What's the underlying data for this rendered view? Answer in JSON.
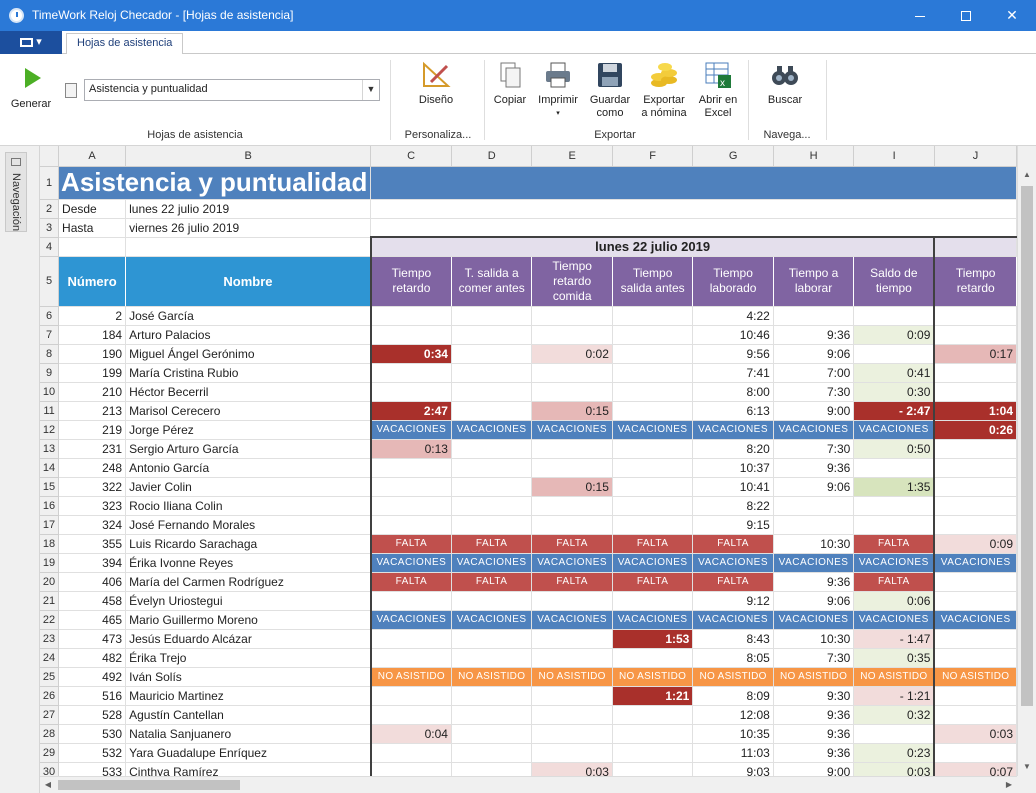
{
  "window": {
    "title": "TimeWork Reloj Checador - [Hojas de asistencia]"
  },
  "tabs": {
    "active": "Hojas de asistencia"
  },
  "ribbon": {
    "generar": "Generar",
    "selector_value": "Asistencia y puntualidad",
    "group_hojas": "Hojas de asistencia",
    "diseno": "Diseño",
    "group_personaliza": "Personaliza...",
    "copiar": "Copiar",
    "imprimir": "Imprimir",
    "guardar_l1": "Guardar",
    "guardar_l2": "como",
    "exportar_l1": "Exportar",
    "exportar_l2": "a nómina",
    "abrir_l1": "Abrir en",
    "abrir_l2": "Excel",
    "group_exportar": "Exportar",
    "buscar": "Buscar",
    "group_navega": "Navega..."
  },
  "nav": {
    "label": "Navegación"
  },
  "columns": [
    "A",
    "B",
    "C",
    "D",
    "E",
    "F",
    "G",
    "H",
    "I",
    "J"
  ],
  "sheet": {
    "title": "Asistencia y puntualidad",
    "desde_label": "Desde",
    "desde_value": "lunes 22 julio 2019",
    "hasta_label": "Hasta",
    "hasta_value": "viernes 26 julio 2019",
    "day_header": "lunes 22 julio 2019",
    "head_numero": "Número",
    "head_nombre": "Nombre",
    "head_c": "Tiempo retardo",
    "head_d": "T. salida a comer antes",
    "head_e": "Tiempo retardo comida",
    "head_f": "Tiempo salida antes",
    "head_g": "Tiempo laborado",
    "head_h": "Tiempo a laborar",
    "head_i": "Saldo de tiempo",
    "head_j": "Tiempo retardo"
  },
  "rows": [
    {
      "r": "6",
      "num": "2",
      "name": "José García",
      "c": "",
      "d": "",
      "e": "",
      "f": "",
      "g": "4:22",
      "h": "",
      "i": "",
      "j": ""
    },
    {
      "r": "7",
      "num": "184",
      "name": "Arturo Palacios",
      "c": "",
      "d": "",
      "e": "",
      "f": "",
      "g": "10:46",
      "h": "9:36",
      "i": "0:09",
      "j": ""
    },
    {
      "r": "8",
      "num": "190",
      "name": "Miguel Ángel Gerónimo",
      "c": "0:34",
      "d": "",
      "e": "0:02",
      "f": "",
      "g": "9:56",
      "h": "9:06",
      "i": "",
      "j": "0:17"
    },
    {
      "r": "9",
      "num": "199",
      "name": "María Cristina Rubio",
      "c": "",
      "d": "",
      "e": "",
      "f": "",
      "g": "7:41",
      "h": "7:00",
      "i": "0:41",
      "j": ""
    },
    {
      "r": "10",
      "num": "210",
      "name": "Héctor Becerril",
      "c": "",
      "d": "",
      "e": "",
      "f": "",
      "g": "8:00",
      "h": "7:30",
      "i": "0:30",
      "j": ""
    },
    {
      "r": "11",
      "num": "213",
      "name": "Marisol Cerecero",
      "c": "2:47",
      "d": "",
      "e": "0:15",
      "f": "",
      "g": "6:13",
      "h": "9:00",
      "i": "- 2:47",
      "j": "1:04"
    },
    {
      "r": "12",
      "num": "219",
      "name": "Jorge Pérez",
      "c": "VACACIONES",
      "d": "VACACIONES",
      "e": "VACACIONES",
      "f": "VACACIONES",
      "g": "VACACIONES",
      "h": "VACACIONES",
      "i": "VACACIONES",
      "j": "0:26"
    },
    {
      "r": "13",
      "num": "231",
      "name": "Sergio Arturo García",
      "c": "0:13",
      "d": "",
      "e": "",
      "f": "",
      "g": "8:20",
      "h": "7:30",
      "i": "0:50",
      "j": ""
    },
    {
      "r": "14",
      "num": "248",
      "name": "Antonio García",
      "c": "",
      "d": "",
      "e": "",
      "f": "",
      "g": "10:37",
      "h": "9:36",
      "i": "",
      "j": ""
    },
    {
      "r": "15",
      "num": "322",
      "name": "Javier Colin",
      "c": "",
      "d": "",
      "e": "0:15",
      "f": "",
      "g": "10:41",
      "h": "9:06",
      "i": "1:35",
      "j": ""
    },
    {
      "r": "16",
      "num": "323",
      "name": "Rocio Iliana Colin",
      "c": "",
      "d": "",
      "e": "",
      "f": "",
      "g": "8:22",
      "h": "",
      "i": "",
      "j": ""
    },
    {
      "r": "17",
      "num": "324",
      "name": "José Fernando Morales",
      "c": "",
      "d": "",
      "e": "",
      "f": "",
      "g": "9:15",
      "h": "",
      "i": "",
      "j": ""
    },
    {
      "r": "18",
      "num": "355",
      "name": "Luis Ricardo Sarachaga",
      "c": "FALTA",
      "d": "FALTA",
      "e": "FALTA",
      "f": "FALTA",
      "g": "FALTA",
      "h": "10:30",
      "i": "FALTA",
      "j": "0:09"
    },
    {
      "r": "19",
      "num": "394",
      "name": "Érika Ivonne Reyes",
      "c": "VACACIONES",
      "d": "VACACIONES",
      "e": "VACACIONES",
      "f": "VACACIONES",
      "g": "VACACIONES",
      "h": "VACACIONES",
      "i": "VACACIONES",
      "j": "VACACIONES"
    },
    {
      "r": "20",
      "num": "406",
      "name": "María del Carmen Rodríguez",
      "c": "FALTA",
      "d": "FALTA",
      "e": "FALTA",
      "f": "FALTA",
      "g": "FALTA",
      "h": "9:36",
      "i": "FALTA",
      "j": ""
    },
    {
      "r": "21",
      "num": "458",
      "name": "Évelyn Uriostegui",
      "c": "",
      "d": "",
      "e": "",
      "f": "",
      "g": "9:12",
      "h": "9:06",
      "i": "0:06",
      "j": ""
    },
    {
      "r": "22",
      "num": "465",
      "name": "Mario Guillermo Moreno",
      "c": "VACACIONES",
      "d": "VACACIONES",
      "e": "VACACIONES",
      "f": "VACACIONES",
      "g": "VACACIONES",
      "h": "VACACIONES",
      "i": "VACACIONES",
      "j": "VACACIONES"
    },
    {
      "r": "23",
      "num": "473",
      "name": "Jesús Eduardo Alcázar",
      "c": "",
      "d": "",
      "e": "",
      "f": "1:53",
      "g": "8:43",
      "h": "10:30",
      "i": "- 1:47",
      "j": ""
    },
    {
      "r": "24",
      "num": "482",
      "name": "Érika Trejo",
      "c": "",
      "d": "",
      "e": "",
      "f": "",
      "g": "8:05",
      "h": "7:30",
      "i": "0:35",
      "j": ""
    },
    {
      "r": "25",
      "num": "492",
      "name": "Iván Solís",
      "c": "NO ASISTIDO",
      "d": "NO ASISTIDO",
      "e": "NO ASISTIDO",
      "f": "NO ASISTIDO",
      "g": "NO ASISTIDO",
      "h": "NO ASISTIDO",
      "i": "NO ASISTIDO",
      "j": "NO ASISTIDO"
    },
    {
      "r": "26",
      "num": "516",
      "name": "Mauricio Martinez",
      "c": "",
      "d": "",
      "e": "",
      "f": "1:21",
      "g": "8:09",
      "h": "9:30",
      "i": "- 1:21",
      "j": ""
    },
    {
      "r": "27",
      "num": "528",
      "name": "Agustín Cantellan",
      "c": "",
      "d": "",
      "e": "",
      "f": "",
      "g": "12:08",
      "h": "9:36",
      "i": "0:32",
      "j": ""
    },
    {
      "r": "28",
      "num": "530",
      "name": "Natalia Sanjuanero",
      "c": "0:04",
      "d": "",
      "e": "",
      "f": "",
      "g": "10:35",
      "h": "9:36",
      "i": "",
      "j": "0:03"
    },
    {
      "r": "29",
      "num": "532",
      "name": "Yara Guadalupe Enríquez",
      "c": "",
      "d": "",
      "e": "",
      "f": "",
      "g": "11:03",
      "h": "9:36",
      "i": "0:23",
      "j": ""
    },
    {
      "r": "30",
      "num": "533",
      "name": "Cinthya Ramírez",
      "c": "",
      "d": "",
      "e": "0:03",
      "f": "",
      "g": "9:03",
      "h": "9:00",
      "i": "0:03",
      "j": "0:07"
    }
  ],
  "styles": {
    "8": {
      "c": "c-dark",
      "e": "c-light",
      "j": "c-mid"
    },
    "7": {
      "i": "c-green"
    },
    "9": {
      "i": "c-green"
    },
    "10": {
      "i": "c-green"
    },
    "11": {
      "c": "c-dark",
      "e": "c-mid",
      "i": "c-dark",
      "j": "c-dark"
    },
    "12": {
      "j": "c-dark"
    },
    "13": {
      "c": "c-mid",
      "i": "c-green"
    },
    "15": {
      "e": "c-mid",
      "i": "c-green2"
    },
    "18": {
      "j": "c-light"
    },
    "21": {
      "i": "c-green"
    },
    "23": {
      "f": "c-dark",
      "i": "c-pinkneg"
    },
    "24": {
      "i": "c-green"
    },
    "26": {
      "f": "c-dark",
      "i": "c-pinkneg"
    },
    "27": {
      "i": "c-green"
    },
    "28": {
      "c": "c-light",
      "j": "c-light"
    },
    "29": {
      "i": "c-green"
    },
    "30": {
      "e": "c-light",
      "i": "c-green",
      "j": "c-light"
    }
  }
}
